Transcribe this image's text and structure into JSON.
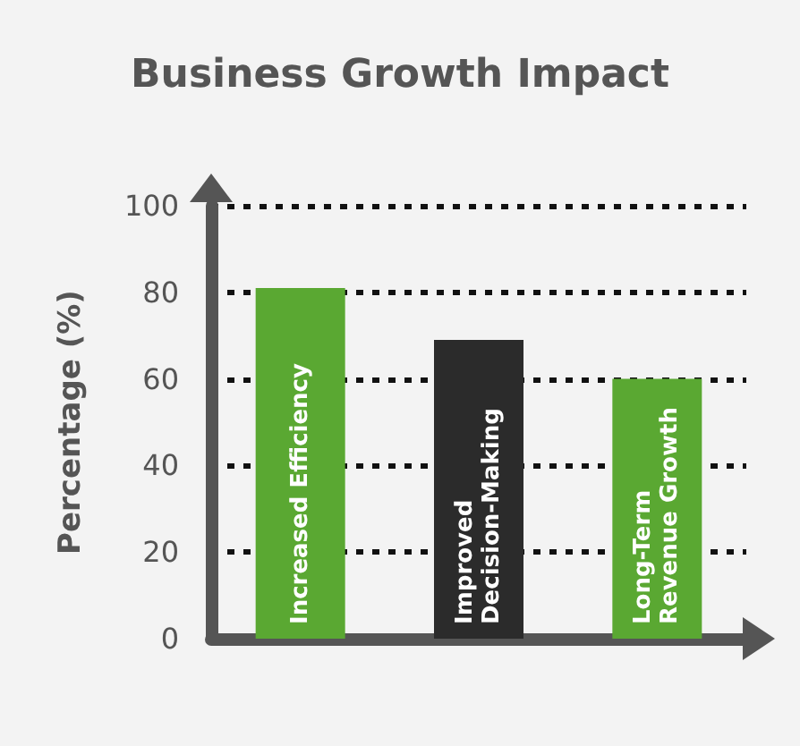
{
  "chart_data": {
    "type": "bar",
    "title": "Business Growth Impact",
    "ylabel": "Percentage (%)",
    "categories": [
      "Increased Efficiency",
      "Improved Decision-Making",
      "Long-Term Revenue Growth"
    ],
    "values": [
      81,
      69,
      60
    ],
    "colors": [
      "#5aa832",
      "#2b2b2b",
      "#5aa832"
    ],
    "ylim": [
      0,
      100
    ],
    "yticks": [
      0,
      20,
      40,
      60,
      80,
      100
    ],
    "grid": "y",
    "tick_labels": "y"
  }
}
